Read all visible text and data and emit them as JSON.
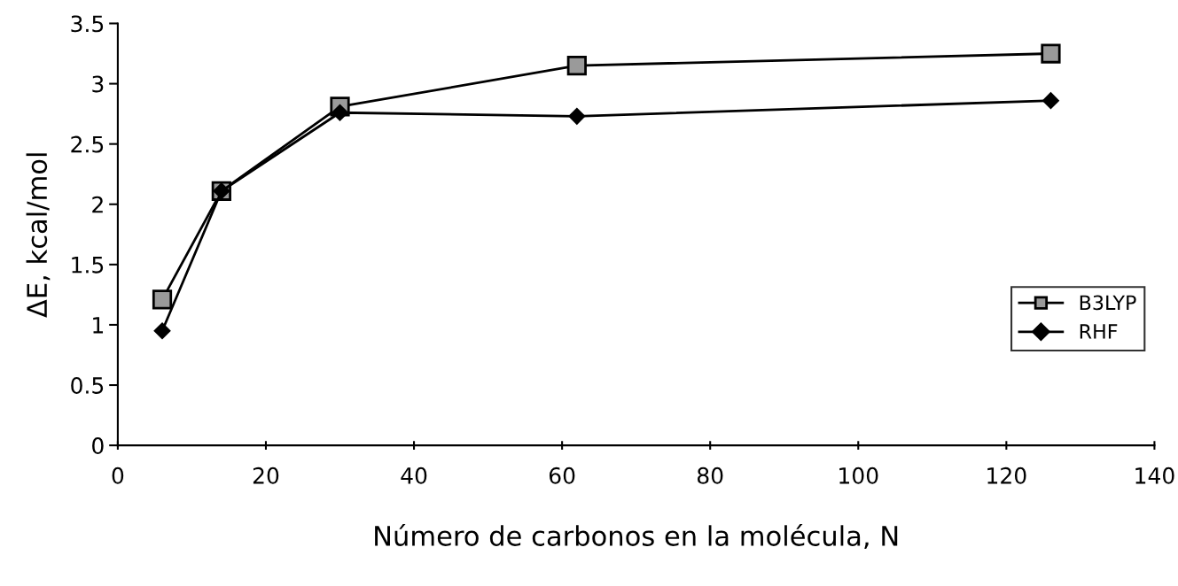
{
  "chart_data": {
    "type": "line",
    "xlabel": "Número de carbonos en la molécula, N",
    "ylabel": "ΔE, kcal/mol",
    "x": [
      6,
      14,
      30,
      62,
      126
    ],
    "series": [
      {
        "name": "B3LYP",
        "color": "#000000",
        "marker": "square",
        "values": [
          1.21,
          2.11,
          2.81,
          3.15,
          3.25
        ]
      },
      {
        "name": "RHF",
        "color": "#000000",
        "marker": "diamond",
        "values": [
          0.95,
          2.11,
          2.76,
          2.73,
          2.86
        ]
      }
    ],
    "xlim": [
      0,
      140
    ],
    "xticks": [
      0,
      20,
      40,
      60,
      80,
      100,
      120,
      140
    ],
    "ylim": [
      0,
      3.5
    ],
    "yticks": [
      0,
      0.5,
      1,
      1.5,
      2,
      2.5,
      3,
      3.5
    ],
    "grid": false,
    "legend": "right",
    "line_style": "solid"
  }
}
